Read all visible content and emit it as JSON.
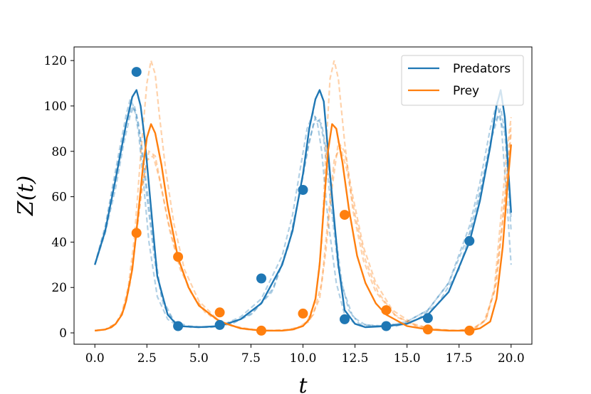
{
  "chart_data": {
    "type": "line",
    "xlabel": "t",
    "ylabel": "Z(t)",
    "xlim": [
      -1.0,
      21.0
    ],
    "ylim": [
      -5,
      126
    ],
    "xticks": [
      0.0,
      2.5,
      5.0,
      7.5,
      10.0,
      12.5,
      15.0,
      17.5,
      20.0
    ],
    "xtick_labels": [
      "0.0",
      "2.5",
      "5.0",
      "7.5",
      "10.0",
      "12.5",
      "15.0",
      "17.5",
      "20.0"
    ],
    "yticks": [
      0,
      20,
      40,
      60,
      80,
      100,
      120
    ],
    "ytick_labels": [
      "0",
      "20",
      "40",
      "60",
      "80",
      "100",
      "120"
    ],
    "grid": false,
    "legend_position": "top-right",
    "colors": {
      "predators": "#1f77b4",
      "prey": "#ff7f0e"
    },
    "series": [
      {
        "name": "Predators",
        "color": "#1f77b4",
        "x": [
          0.0,
          0.5,
          1.0,
          1.5,
          1.8,
          2.0,
          2.2,
          2.4,
          2.7,
          3.0,
          3.5,
          4.0,
          5.0,
          6.0,
          7.0,
          8.0,
          9.0,
          9.5,
          10.0,
          10.3,
          10.6,
          10.8,
          11.0,
          11.3,
          11.7,
          12.0,
          12.5,
          13.0,
          14.0,
          15.0,
          16.0,
          17.0,
          18.0,
          18.5,
          19.0,
          19.3,
          19.5,
          19.7,
          20.0
        ],
        "y": [
          30,
          45,
          68,
          92,
          104,
          107,
          100,
          85,
          55,
          25,
          8,
          3,
          2.5,
          3,
          6,
          13,
          30,
          45,
          70,
          90,
          103,
          107,
          102,
          70,
          30,
          10,
          4,
          2.5,
          3,
          4,
          8,
          18,
          40,
          58,
          82,
          100,
          107,
          95,
          53
        ]
      },
      {
        "name": "Prey",
        "color": "#ff7f0e",
        "x": [
          0.0,
          0.5,
          0.8,
          1.0,
          1.3,
          1.5,
          1.8,
          2.0,
          2.3,
          2.5,
          2.7,
          2.9,
          3.2,
          3.5,
          4.0,
          4.5,
          5.0,
          6.0,
          7.0,
          8.0,
          9.0,
          9.5,
          10.0,
          10.3,
          10.6,
          10.8,
          11.0,
          11.2,
          11.4,
          11.6,
          11.9,
          12.2,
          12.6,
          13.0,
          13.5,
          14.0,
          15.0,
          16.0,
          17.0,
          18.0,
          18.5,
          19.0,
          19.3,
          19.6,
          19.8,
          20.0
        ],
        "y": [
          1,
          1.5,
          2.5,
          4,
          8,
          14,
          28,
          45,
          72,
          86,
          92,
          88,
          74,
          56,
          33,
          20,
          12,
          5,
          2,
          1,
          1,
          1.5,
          3,
          6,
          15,
          30,
          55,
          80,
          92,
          90,
          75,
          55,
          34,
          22,
          13,
          8,
          3,
          1.5,
          1,
          1,
          2,
          5,
          15,
          38,
          62,
          83
        ]
      }
    ],
    "observations": [
      {
        "series": "Predators",
        "x": [
          2,
          4,
          6,
          8,
          10,
          12,
          14,
          16,
          18
        ],
        "y": [
          115,
          3,
          3.5,
          24,
          63,
          6,
          3,
          6.5,
          40.5
        ]
      },
      {
        "series": "Prey",
        "x": [
          2,
          4,
          6,
          8,
          10,
          12,
          14,
          16,
          18
        ],
        "y": [
          44,
          33.5,
          9,
          1,
          8.5,
          52,
          10,
          1.5,
          1
        ]
      }
    ],
    "samples": [
      {
        "series": "Predators",
        "x": [
          0.0,
          0.5,
          1.0,
          1.5,
          1.7,
          1.9,
          2.1,
          2.3,
          2.6,
          3.0,
          3.5,
          4.0,
          5.0,
          6.0,
          7.0,
          8.0,
          9.0,
          9.5,
          9.9,
          10.2,
          10.5,
          10.7,
          10.9,
          11.2,
          11.6,
          12.0,
          12.5,
          13.0,
          14.0,
          15.0,
          16.0,
          17.0,
          18.0,
          18.5,
          19.0,
          19.3,
          19.5,
          19.8,
          20.0
        ],
        "y": [
          30,
          47,
          72,
          96,
          103,
          99,
          88,
          70,
          40,
          16,
          6,
          3,
          2.5,
          3,
          7,
          15,
          34,
          52,
          74,
          90,
          97,
          92,
          80,
          50,
          22,
          8,
          4,
          3,
          3,
          5,
          10,
          22,
          47,
          66,
          90,
          101,
          95,
          58,
          30
        ]
      },
      {
        "series": "Predators",
        "x": [
          0.0,
          0.5,
          1.0,
          1.4,
          1.7,
          1.9,
          2.1,
          2.4,
          2.8,
          3.2,
          3.8,
          4.5,
          5.5,
          6.5,
          7.5,
          8.5,
          9.3,
          9.8,
          10.2,
          10.5,
          10.8,
          11.0,
          11.3,
          11.7,
          12.2,
          12.7,
          13.5,
          14.5,
          15.5,
          16.5,
          17.5,
          18.3,
          18.8,
          19.2,
          19.5,
          19.8,
          20.0
        ],
        "y": [
          30,
          44,
          64,
          84,
          96,
          100,
          92,
          72,
          40,
          16,
          5,
          3,
          2.5,
          4,
          8,
          18,
          38,
          60,
          80,
          92,
          94,
          85,
          60,
          28,
          10,
          4,
          3,
          3,
          6,
          13,
          28,
          52,
          74,
          92,
          99,
          84,
          50
        ]
      },
      {
        "series": "Predators",
        "x": [
          0.0,
          0.5,
          1.0,
          1.5,
          1.8,
          2.0,
          2.2,
          2.5,
          2.9,
          3.3,
          3.9,
          4.6,
          5.6,
          6.6,
          7.6,
          8.6,
          9.4,
          9.9,
          10.3,
          10.6,
          10.9,
          11.2,
          11.5,
          11.9,
          12.4,
          13.0,
          14.0,
          15.0,
          16.0,
          17.0,
          18.0,
          18.6,
          19.0,
          19.4,
          19.7,
          20.0
        ],
        "y": [
          30,
          46,
          70,
          92,
          100,
          96,
          84,
          60,
          30,
          12,
          4,
          2.5,
          2.5,
          4,
          9,
          20,
          42,
          64,
          84,
          95,
          92,
          76,
          48,
          20,
          7,
          3.5,
          3,
          5,
          10,
          22,
          44,
          66,
          84,
          96,
          88,
          45
        ]
      },
      {
        "series": "Prey",
        "x": [
          0.0,
          0.5,
          1.0,
          1.3,
          1.6,
          1.9,
          2.2,
          2.5,
          2.7,
          2.9,
          3.1,
          3.4,
          3.8,
          4.3,
          5.0,
          6.0,
          7.0,
          8.0,
          9.0,
          9.7,
          10.2,
          10.6,
          10.9,
          11.1,
          11.3,
          11.5,
          11.7,
          12.0,
          12.4,
          12.9,
          13.5,
          14.5,
          15.5,
          16.5,
          17.5,
          18.3,
          18.8,
          19.2,
          19.5,
          19.8,
          20.0
        ],
        "y": [
          1,
          1.5,
          4,
          9,
          20,
          42,
          78,
          110,
          120,
          114,
          96,
          72,
          48,
          28,
          14,
          5,
          2,
          1,
          1,
          2,
          5,
          14,
          40,
          80,
          112,
          120,
          112,
          84,
          54,
          32,
          18,
          7,
          3,
          1.5,
          1,
          2,
          6,
          20,
          50,
          80,
          95
        ]
      },
      {
        "series": "Prey",
        "x": [
          0.0,
          0.5,
          1.0,
          1.3,
          1.6,
          1.9,
          2.2,
          2.5,
          2.8,
          3.1,
          3.5,
          4.0,
          4.6,
          5.3,
          6.3,
          7.3,
          8.3,
          9.3,
          10.0,
          10.5,
          10.9,
          11.2,
          11.5,
          11.8,
          12.1,
          12.5,
          13.0,
          13.6,
          14.4,
          15.4,
          16.4,
          17.4,
          18.2,
          18.8,
          19.3,
          19.6,
          19.9,
          20.0
        ],
        "y": [
          1,
          1.5,
          4,
          8,
          18,
          36,
          60,
          76,
          78,
          68,
          50,
          32,
          18,
          9,
          4,
          1.5,
          1,
          1.5,
          3,
          8,
          22,
          50,
          76,
          82,
          72,
          52,
          32,
          18,
          8,
          3,
          1.5,
          1,
          2,
          6,
          22,
          50,
          78,
          88
        ]
      },
      {
        "series": "Prey",
        "x": [
          0.0,
          0.5,
          1.0,
          1.4,
          1.7,
          2.0,
          2.3,
          2.6,
          2.9,
          3.2,
          3.6,
          4.1,
          4.8,
          5.6,
          6.6,
          7.6,
          8.6,
          9.6,
          10.3,
          10.8,
          11.1,
          11.4,
          11.7,
          12.0,
          12.4,
          12.9,
          13.5,
          14.3,
          15.3,
          16.3,
          17.3,
          18.1,
          18.7,
          19.2,
          19.6,
          19.9,
          20.0
        ],
        "y": [
          1,
          1.5,
          4,
          10,
          22,
          44,
          66,
          80,
          78,
          64,
          45,
          28,
          15,
          7,
          3,
          1.5,
          1,
          1.5,
          5,
          15,
          36,
          64,
          84,
          80,
          60,
          38,
          22,
          10,
          4,
          1.5,
          1,
          1.5,
          5,
          18,
          50,
          80,
          92
        ]
      }
    ]
  }
}
